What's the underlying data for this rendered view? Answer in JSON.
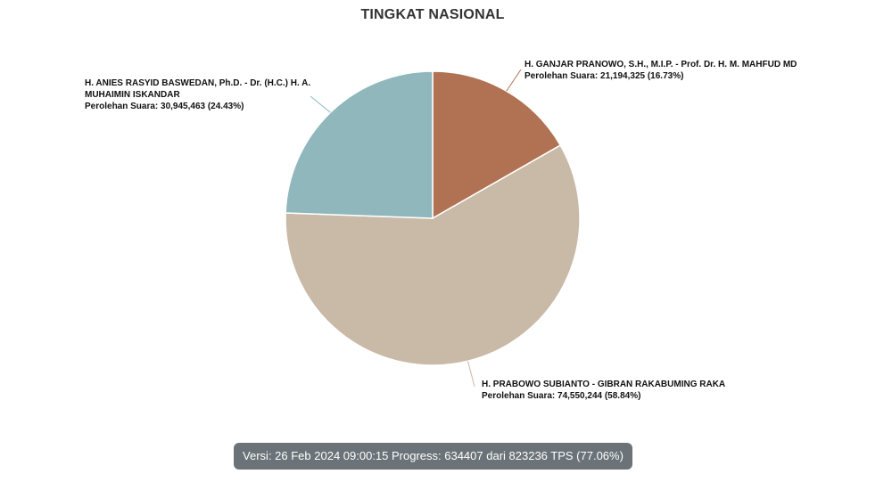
{
  "chart_data": {
    "type": "pie",
    "title": "TINGKAT NASIONAL",
    "slices": [
      {
        "id": "ganjar",
        "name": "H. GANJAR PRANOWO, S.H., M.I.P. - Prof. Dr. H. M. MAHFUD MD",
        "votes_text": "Perolehan Suara: 21,194,325 (16.73%)",
        "votes": 21194325,
        "percent": 16.73,
        "color": "#b07253"
      },
      {
        "id": "prabowo",
        "name": "H. PRABOWO SUBIANTO - GIBRAN RAKABUMING RAKA",
        "votes_text": "Perolehan Suara: 74,550,244 (58.84%)",
        "votes": 74550244,
        "percent": 58.84,
        "color": "#c9b9a7"
      },
      {
        "id": "anies",
        "name": "H. ANIES RASYID BASWEDAN, Ph.D. - Dr. (H.C.) H. A. MUHAIMIN ISKANDAR",
        "votes_text": "Perolehan Suara: 30,945,463 (24.43%)",
        "votes": 30945463,
        "percent": 24.43,
        "color": "#8fb7bc"
      }
    ]
  },
  "status": {
    "text": "Versi: 26 Feb 2024 09:00:15 Progress: 634407 dari 823236 TPS (77.06%)",
    "progress_tps": 634407,
    "total_tps": 823236,
    "progress_percent": 77.06
  }
}
